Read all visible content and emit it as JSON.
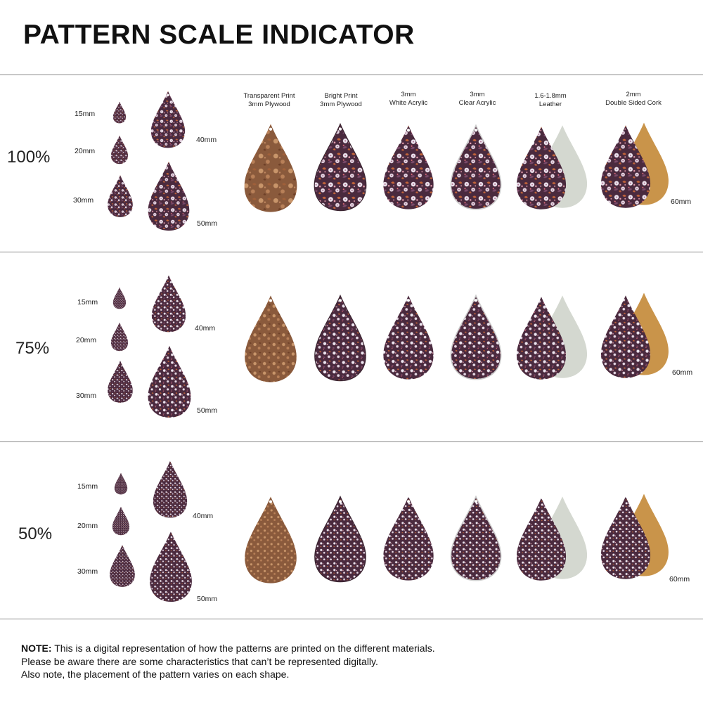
{
  "title": "PATTERN SCALE INDICATOR",
  "materials": [
    {
      "line1": "Transparent Print",
      "line2": "3mm Plywood"
    },
    {
      "line1": "Bright Print",
      "line2": "3mm Plywood"
    },
    {
      "line1": "3mm",
      "line2": "White Acrylic"
    },
    {
      "line1": "3mm",
      "line2": "Clear Acrylic"
    },
    {
      "line1": "1.6-1.8mm",
      "line2": "Leather"
    },
    {
      "line1": "2mm",
      "line2": "Double Sided Cork"
    }
  ],
  "sizes": {
    "s15": "15mm",
    "s20": "20mm",
    "s30": "30mm",
    "s40": "40mm",
    "s50": "50mm",
    "s60": "60mm"
  },
  "sections": [
    {
      "scale": "100%"
    },
    {
      "scale": "75%"
    },
    {
      "scale": "50%"
    }
  ],
  "note": {
    "label": "NOTE:",
    "line1": "This is a digital representation of how the patterns are printed on the different materials.",
    "line2": "Please be aware there are some characteristics that can’t be represented digitally.",
    "line3": "Also note, the placement of the pattern varies on each shape."
  },
  "colors": {
    "pattern_base": "#4a2a3e",
    "plywood": "#8a5a3c",
    "leather_back": "#d4d8d0",
    "cork": "#c9944a",
    "flower_white": "#ece4ee",
    "flower_pink": "#e8a0b0",
    "leaf_orange": "#c2643a"
  }
}
